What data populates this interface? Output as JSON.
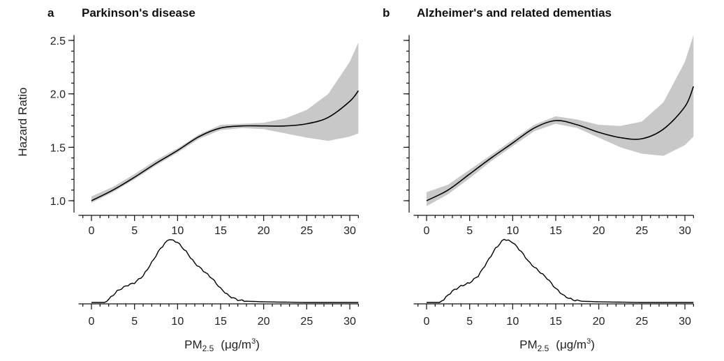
{
  "ylabel": "Hazard Ratio",
  "xlabel_main": "PM",
  "xlabel_sub": "2.5",
  "xlabel_unit": "(μg/m",
  "xlabel_sup": "3",
  "xlabel_close": ")",
  "chart_data": [
    {
      "type": "line",
      "panel": "a",
      "title": "Parkinson's disease",
      "xlim": [
        -1.5,
        31
      ],
      "ylim": [
        0.92,
        2.55
      ],
      "xticks": [
        0,
        5,
        10,
        15,
        20,
        25,
        30
      ],
      "xtick_labels": [
        "0",
        "5",
        "10",
        "15",
        "20",
        "25",
        "30"
      ],
      "yticks": [
        1.0,
        1.5,
        2.0,
        2.5
      ],
      "ytick_labels": [
        "1.0",
        "1.5",
        "2.0",
        "2.5"
      ],
      "series": [
        {
          "x": [
            0,
            2.5,
            5,
            7.5,
            10,
            12.5,
            15,
            17.5,
            20,
            22.5,
            25,
            27.5,
            30,
            31
          ],
          "y": [
            1.0,
            1.1,
            1.22,
            1.35,
            1.47,
            1.6,
            1.68,
            1.7,
            1.7,
            1.7,
            1.72,
            1.78,
            1.93,
            2.03
          ],
          "lower": [
            0.98,
            1.08,
            1.2,
            1.33,
            1.45,
            1.58,
            1.66,
            1.68,
            1.67,
            1.63,
            1.59,
            1.56,
            1.6,
            1.63
          ],
          "upper": [
            1.04,
            1.13,
            1.25,
            1.38,
            1.49,
            1.62,
            1.71,
            1.72,
            1.73,
            1.77,
            1.85,
            2.0,
            2.3,
            2.48
          ]
        }
      ],
      "distribution": {
        "x": [
          0,
          1.5,
          2,
          3,
          4,
          5,
          6,
          7,
          8,
          9,
          10,
          11,
          12,
          13,
          14,
          15,
          16,
          17,
          18,
          20,
          25,
          30,
          31
        ],
        "density": [
          0,
          0,
          0.05,
          0.18,
          0.26,
          0.31,
          0.42,
          0.63,
          0.85,
          1.0,
          0.95,
          0.8,
          0.62,
          0.5,
          0.38,
          0.22,
          0.1,
          0.04,
          0.02,
          0.01,
          0,
          0,
          0
        ]
      }
    },
    {
      "type": "line",
      "panel": "b",
      "title": "Alzheimer's and related dementias",
      "xlim": [
        -1.5,
        31
      ],
      "ylim": [
        0.92,
        2.55
      ],
      "xticks": [
        0,
        5,
        10,
        15,
        20,
        25,
        30
      ],
      "xtick_labels": [
        "0",
        "5",
        "10",
        "15",
        "20",
        "25",
        "30"
      ],
      "yticks": [
        1.0,
        1.5,
        2.0,
        2.5
      ],
      "ytick_labels": [
        "1.0",
        "1.5",
        "2.0",
        "2.5"
      ],
      "series": [
        {
          "x": [
            0,
            2.5,
            5,
            7.5,
            10,
            12.5,
            15,
            17.5,
            20,
            22.5,
            25,
            27.5,
            30,
            31
          ],
          "y": [
            1.0,
            1.1,
            1.25,
            1.4,
            1.54,
            1.68,
            1.75,
            1.71,
            1.64,
            1.59,
            1.58,
            1.67,
            1.88,
            2.07
          ],
          "lower": [
            0.95,
            1.06,
            1.21,
            1.37,
            1.51,
            1.65,
            1.72,
            1.68,
            1.59,
            1.5,
            1.44,
            1.42,
            1.52,
            1.6
          ],
          "upper": [
            1.08,
            1.15,
            1.29,
            1.43,
            1.57,
            1.71,
            1.79,
            1.76,
            1.71,
            1.7,
            1.74,
            1.92,
            2.3,
            2.55
          ]
        }
      ],
      "distribution": {
        "x": [
          0,
          1.5,
          2,
          3,
          4,
          5,
          6,
          7,
          8,
          9,
          10,
          11,
          12,
          13,
          14,
          15,
          16,
          17,
          18,
          20,
          25,
          30,
          31
        ],
        "density": [
          0,
          0,
          0.05,
          0.18,
          0.26,
          0.31,
          0.42,
          0.63,
          0.85,
          1.0,
          0.95,
          0.8,
          0.62,
          0.5,
          0.38,
          0.22,
          0.1,
          0.04,
          0.02,
          0.01,
          0,
          0,
          0
        ]
      }
    }
  ]
}
